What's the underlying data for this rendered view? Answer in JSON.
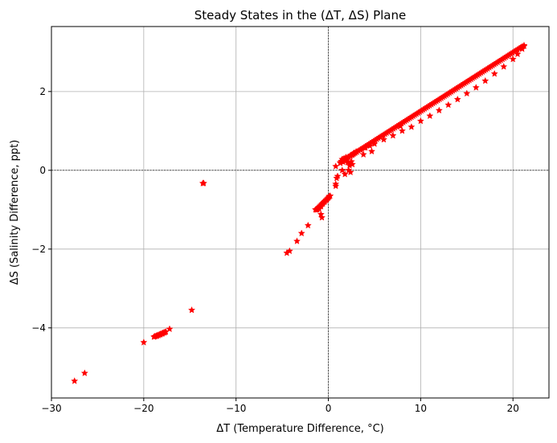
{
  "chart_data": {
    "type": "scatter",
    "title": "Steady States in the (ΔT, ΔS) Plane",
    "xlabel": "ΔT (Temperature Difference, °C)",
    "ylabel": "ΔS (Salinity Difference, ppt)",
    "xlim": [
      -30,
      23.9
    ],
    "ylim": [
      -5.78,
      3.65
    ],
    "x_ticks": [
      -30,
      -20,
      -10,
      0,
      10,
      20
    ],
    "x_tick_labels": [
      "−30",
      "−20",
      "−10",
      "0",
      "10",
      "20"
    ],
    "y_ticks": [
      -4,
      -2,
      0,
      2
    ],
    "y_tick_labels": [
      "−4",
      "−2",
      "0",
      "2"
    ],
    "grid": true,
    "reference_lines": {
      "x": 0,
      "y": 0,
      "style": "dashed"
    },
    "marker": "star",
    "marker_color": "#ff0000",
    "series": [
      {
        "points": [
          [
            -27.5,
            -5.35
          ],
          [
            -26.4,
            -5.15
          ],
          [
            -20.0,
            -4.37
          ],
          [
            -18.8,
            -4.22
          ],
          [
            -18.6,
            -4.21
          ],
          [
            -18.4,
            -4.19
          ],
          [
            -18.2,
            -4.17
          ],
          [
            -18.0,
            -4.15
          ],
          [
            -17.8,
            -4.12
          ],
          [
            -17.6,
            -4.1
          ],
          [
            -17.2,
            -4.03
          ],
          [
            -14.8,
            -3.55
          ],
          [
            -13.6,
            -0.33
          ],
          [
            -13.5,
            -0.33
          ],
          [
            -4.5,
            -2.1
          ],
          [
            -4.2,
            -2.05
          ],
          [
            -3.4,
            -1.8
          ],
          [
            -2.9,
            -1.6
          ],
          [
            -2.2,
            -1.4
          ],
          [
            -1.4,
            -1.0
          ],
          [
            -1.2,
            -1.0
          ],
          [
            -1.0,
            -0.98
          ],
          [
            -0.8,
            -0.92
          ],
          [
            -0.6,
            -0.85
          ],
          [
            -0.4,
            -0.8
          ],
          [
            -0.2,
            -0.75
          ],
          [
            0.0,
            -0.7
          ],
          [
            0.1,
            -0.66
          ],
          [
            -0.8,
            -1.12
          ],
          [
            -0.7,
            -1.2
          ],
          [
            0.8,
            0.1
          ],
          [
            0.8,
            -0.35
          ],
          [
            0.8,
            -0.4
          ],
          [
            0.9,
            -0.2
          ],
          [
            1.0,
            -0.15
          ],
          [
            1.5,
            0.0
          ],
          [
            1.3,
            0.18
          ],
          [
            1.4,
            0.23
          ],
          [
            1.5,
            0.28
          ],
          [
            1.6,
            0.21
          ],
          [
            1.7,
            0.3
          ],
          [
            1.8,
            0.24
          ],
          [
            1.9,
            0.33
          ],
          [
            2.0,
            0.26
          ],
          [
            2.1,
            0.2
          ],
          [
            2.2,
            0.34
          ],
          [
            2.3,
            0.12
          ],
          [
            2.4,
            0.38
          ],
          [
            2.5,
            0.22
          ],
          [
            2.6,
            0.4
          ],
          [
            2.7,
            0.42
          ],
          [
            2.8,
            0.44
          ],
          [
            1.8,
            -0.1
          ],
          [
            2.2,
            0.0
          ],
          [
            2.4,
            -0.05
          ],
          [
            2.6,
            0.15
          ],
          [
            3.0,
            0.47
          ],
          [
            3.5,
            0.52
          ],
          [
            3.8,
            0.4
          ],
          [
            4.0,
            0.57
          ],
          [
            4.5,
            0.62
          ],
          [
            4.7,
            0.48
          ],
          [
            5.0,
            0.67
          ],
          [
            6.0,
            0.78
          ],
          [
            7.0,
            0.88
          ],
          [
            7.8,
            1.12
          ],
          [
            8.0,
            1.0
          ],
          [
            9.0,
            1.1
          ],
          [
            10.0,
            1.25
          ],
          [
            11.0,
            1.38
          ],
          [
            12.0,
            1.52
          ],
          [
            13.0,
            1.66
          ],
          [
            14.0,
            1.8
          ],
          [
            15.0,
            1.95
          ],
          [
            16.0,
            2.1
          ],
          [
            17.0,
            2.27
          ],
          [
            18.0,
            2.45
          ],
          [
            19.0,
            2.63
          ],
          [
            20.0,
            2.82
          ],
          [
            20.5,
            2.95
          ],
          [
            21.0,
            3.08
          ],
          [
            21.2,
            3.15
          ]
        ],
        "dense_segments": [
          {
            "from": [
              1.3,
              0.2
            ],
            "to": [
              21.2,
              3.17
            ],
            "step": 0.18
          },
          {
            "from": [
              -18.9,
              -4.23
            ],
            "to": [
              -17.7,
              -4.11
            ],
            "step": 0.12
          },
          {
            "from": [
              -1.3,
              -1.0
            ],
            "to": [
              0.2,
              -0.65
            ],
            "step": 0.1
          }
        ]
      }
    ]
  }
}
